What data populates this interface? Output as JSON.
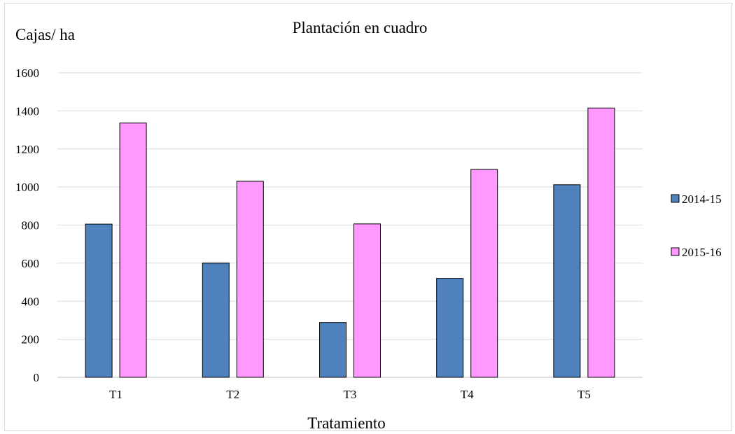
{
  "chart_data": {
    "type": "bar",
    "title": "Plantación en cuadro",
    "ylabel": "Cajas/ ha",
    "xlabel": "Tratamiento",
    "categories": [
      "T1",
      "T2",
      "T3",
      "T4",
      "T5"
    ],
    "series": [
      {
        "name": "2014-15",
        "values": [
          805,
          600,
          288,
          520,
          1012
        ],
        "color": "#4f81bd"
      },
      {
        "name": "2015-16",
        "values": [
          1336,
          1030,
          806,
          1092,
          1415
        ],
        "color": "#ff99ff"
      }
    ],
    "ylim": [
      0,
      1600
    ],
    "yticks": [
      "0",
      "200",
      "400",
      "600",
      "800",
      "1000",
      "1200",
      "1400",
      "1600"
    ],
    "grid": true,
    "legend_position": "right",
    "colors": {
      "gridline": "#d9d9d9",
      "bar_outline": "#000000"
    }
  }
}
